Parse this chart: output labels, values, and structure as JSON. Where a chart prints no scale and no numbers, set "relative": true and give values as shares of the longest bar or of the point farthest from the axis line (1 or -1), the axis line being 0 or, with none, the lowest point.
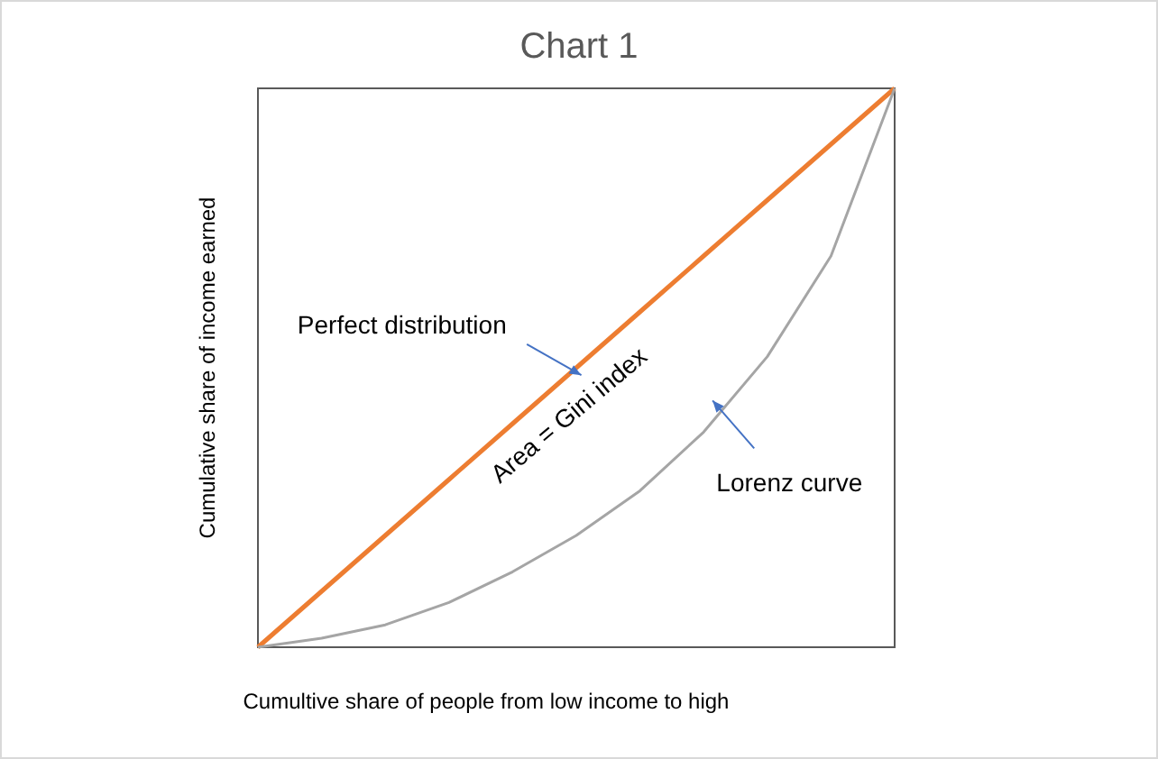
{
  "chart_data": {
    "type": "line",
    "title": "Chart 1",
    "xlabel": "Cumultive share of people from low income to high",
    "ylabel": "Cumulative share of income earned",
    "relative": true,
    "categories": [
      null,
      null,
      null,
      null,
      null,
      null,
      null,
      null,
      null,
      null,
      null
    ],
    "series": [
      {
        "color": "#ed7d31",
        "values": [
          0,
          0.1,
          0.2,
          0.3,
          0.4,
          0.5,
          0.6,
          0.7,
          0.8,
          0.9,
          1
        ]
      },
      {
        "color": "#a5a5a5",
        "values": [
          0,
          0.016,
          0.04,
          0.08,
          0.135,
          0.2,
          0.28,
          0.385,
          0.52,
          0.7,
          1
        ]
      }
    ],
    "annotations": [
      "Perfect distribution",
      "Area = Gini index",
      "Lorenz curve"
    ],
    "grid": false
  }
}
